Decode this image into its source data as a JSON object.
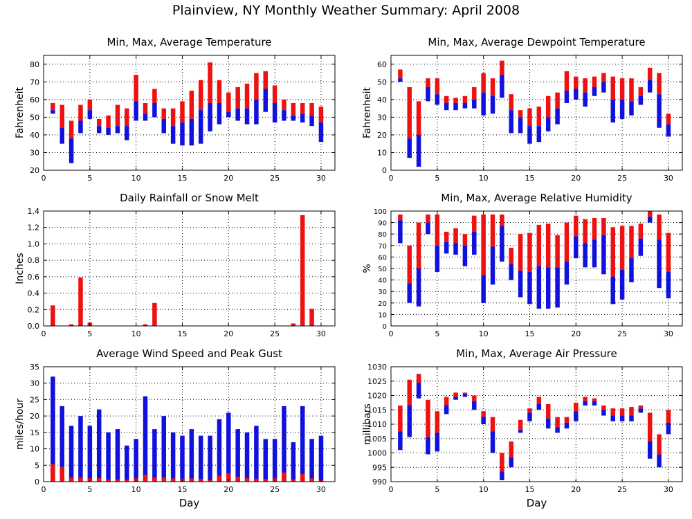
{
  "page": {
    "title": "Plainview, NY Monthly Weather Summary: April 2008"
  },
  "colors": {
    "max_part": "#ee1111",
    "min_part": "#1111dd",
    "grid": "#000000"
  },
  "chart_data": [
    {
      "id": "temperature",
      "type": "floating-bar",
      "title": "Min, Max, Average Temperature",
      "xlabel": "",
      "ylabel": "Fahrenheit",
      "xlim": [
        0,
        31.5
      ],
      "ylim": [
        20,
        85
      ],
      "xticks": [
        0,
        5,
        10,
        15,
        20,
        25,
        30
      ],
      "yticks": [
        20,
        30,
        40,
        50,
        60,
        70,
        80
      ],
      "grid": true,
      "x": [
        1,
        2,
        3,
        4,
        5,
        6,
        7,
        8,
        9,
        10,
        11,
        12,
        13,
        14,
        15,
        16,
        17,
        18,
        19,
        20,
        21,
        22,
        23,
        24,
        25,
        26,
        27,
        28,
        29,
        30
      ],
      "max": [
        58,
        57,
        48,
        57,
        60,
        49,
        51,
        57,
        55,
        74,
        58,
        66,
        55,
        55,
        59,
        65,
        71,
        81,
        71,
        64,
        67,
        69,
        75,
        76,
        68,
        60,
        58,
        58,
        58,
        56
      ],
      "avg": [
        54,
        44,
        38,
        48,
        54,
        45,
        44,
        45,
        45,
        59,
        52,
        58,
        49,
        45,
        47,
        49,
        54,
        58,
        58,
        53,
        55,
        55,
        60,
        66,
        58,
        54,
        51,
        52,
        51,
        47
      ],
      "min": [
        52,
        35,
        24,
        41,
        49,
        41,
        40,
        41,
        37,
        48,
        48,
        50,
        41,
        35,
        34,
        34,
        35,
        42,
        46,
        50,
        48,
        46,
        46,
        53,
        47,
        48,
        48,
        47,
        45,
        36
      ]
    },
    {
      "id": "dewpoint",
      "type": "floating-bar",
      "title": "Min, Max, Average Dewpoint Temperature",
      "xlabel": "",
      "ylabel": "Fahrenheit",
      "xlim": [
        0,
        31.5
      ],
      "ylim": [
        0,
        65
      ],
      "xticks": [
        0,
        5,
        10,
        15,
        20,
        25,
        30
      ],
      "yticks": [
        0,
        10,
        20,
        30,
        40,
        50,
        60
      ],
      "grid": true,
      "x": [
        1,
        2,
        3,
        4,
        5,
        6,
        7,
        8,
        9,
        10,
        11,
        12,
        13,
        14,
        15,
        16,
        17,
        18,
        19,
        20,
        21,
        22,
        23,
        24,
        25,
        26,
        27,
        28,
        29,
        30
      ],
      "max": [
        57,
        47,
        39,
        52,
        52,
        42,
        41,
        42,
        47,
        55,
        52,
        62,
        43,
        34,
        35,
        36,
        42,
        44,
        56,
        53,
        52,
        53,
        55,
        53,
        52,
        52,
        47,
        58,
        55,
        32
      ],
      "avg": [
        52,
        18,
        20,
        47,
        43,
        38,
        38,
        38,
        40,
        44,
        42,
        54,
        34,
        30,
        25,
        25,
        30,
        35,
        45,
        46,
        44,
        47,
        50,
        40,
        40,
        39,
        42,
        51,
        43,
        26
      ],
      "min": [
        50,
        7,
        2,
        39,
        37,
        34,
        34,
        35,
        35,
        31,
        32,
        41,
        21,
        21,
        15,
        16,
        22,
        26,
        38,
        40,
        36,
        42,
        44,
        27,
        29,
        31,
        37,
        44,
        24,
        19
      ]
    },
    {
      "id": "rainfall",
      "type": "bar",
      "title": "Daily Rainfall or Snow Melt",
      "xlabel": "",
      "ylabel": "Inches",
      "xlim": [
        0,
        31.5
      ],
      "ylim": [
        0,
        1.4
      ],
      "xticks": [
        0,
        5,
        10,
        15,
        20,
        25,
        30
      ],
      "yticks": [
        0.0,
        0.2,
        0.4,
        0.6,
        0.8,
        1.0,
        1.2,
        1.4
      ],
      "ytick_labels": [
        "0.0",
        "0.2",
        "0.4",
        "0.6",
        "0.8",
        "1.0",
        "1.2",
        "1.4"
      ],
      "grid": true,
      "x": [
        1,
        2,
        3,
        4,
        5,
        6,
        7,
        8,
        9,
        10,
        11,
        12,
        13,
        14,
        15,
        16,
        17,
        18,
        19,
        20,
        21,
        22,
        23,
        24,
        25,
        26,
        27,
        28,
        29,
        30
      ],
      "values": [
        0.25,
        0,
        0.02,
        0.59,
        0.04,
        0,
        0,
        0,
        0,
        0,
        0.02,
        0.28,
        0,
        0,
        0,
        0,
        0,
        0,
        0,
        0,
        0,
        0,
        0,
        0,
        0,
        0,
        0.03,
        1.35,
        0.21,
        0
      ]
    },
    {
      "id": "humidity",
      "type": "floating-bar",
      "title": "Min, Max, Average Relative Humidity",
      "xlabel": "",
      "ylabel": "%",
      "xlim": [
        0,
        31.5
      ],
      "ylim": [
        0,
        100
      ],
      "xticks": [
        0,
        5,
        10,
        15,
        20,
        25,
        30
      ],
      "yticks": [
        0,
        10,
        20,
        30,
        40,
        50,
        60,
        70,
        80,
        90,
        100
      ],
      "grid": true,
      "x": [
        1,
        2,
        3,
        4,
        5,
        6,
        7,
        8,
        9,
        10,
        11,
        12,
        13,
        14,
        15,
        16,
        17,
        18,
        19,
        20,
        21,
        22,
        23,
        24,
        25,
        26,
        27,
        28,
        29,
        30
      ],
      "max": [
        97,
        70,
        90,
        97,
        97,
        82,
        85,
        80,
        96,
        97,
        97,
        97,
        68,
        80,
        81,
        88,
        89,
        79,
        90,
        96,
        93,
        94,
        94,
        86,
        87,
        87,
        89,
        100,
        97,
        81
      ],
      "avg": [
        92,
        37,
        50,
        90,
        70,
        73,
        72,
        70,
        82,
        44,
        69,
        87,
        54,
        48,
        47,
        52,
        51,
        51,
        56,
        78,
        72,
        75,
        79,
        43,
        49,
        59,
        76,
        95,
        75,
        47
      ],
      "min": [
        72,
        20,
        17,
        80,
        47,
        63,
        62,
        52,
        62,
        20,
        36,
        56,
        40,
        25,
        19,
        15,
        15,
        16,
        36,
        59,
        51,
        51,
        45,
        19,
        23,
        38,
        61,
        90,
        33,
        24
      ]
    },
    {
      "id": "wind",
      "type": "stacked-bar",
      "title": "Average Wind Speed and Peak Gust",
      "xlabel": "Day",
      "ylabel": "miles/hour",
      "xlim": [
        0,
        31.5
      ],
      "ylim": [
        0,
        35
      ],
      "xticks": [
        0,
        5,
        10,
        15,
        20,
        25,
        30
      ],
      "yticks": [
        0,
        5,
        10,
        15,
        20,
        25,
        30,
        35
      ],
      "grid": true,
      "legend": "none",
      "x": [
        1,
        2,
        3,
        4,
        5,
        6,
        7,
        8,
        9,
        10,
        11,
        12,
        13,
        14,
        15,
        16,
        17,
        18,
        19,
        20,
        21,
        22,
        23,
        24,
        25,
        26,
        27,
        28,
        29,
        30
      ],
      "series": [
        {
          "values": [
            5.3,
            4.5,
            1.3,
            1.2,
            1.0,
            1.1,
            0.6,
            0.7,
            0.6,
            1.0,
            2.1,
            1.3,
            1.3,
            1.0,
            0.9,
            1.0,
            0.8,
            0.5,
            1.8,
            2.6,
            1.5,
            1.1,
            0.9,
            0.8,
            1.0,
            2.8,
            0.7,
            2.3,
            1.0,
            0.5
          ]
        },
        {
          "values": [
            32,
            23,
            17,
            20,
            17,
            22,
            15,
            16,
            11,
            13,
            26,
            16,
            20,
            15,
            14,
            16,
            14,
            14,
            19,
            21,
            16,
            15,
            17,
            13,
            13,
            23,
            12,
            23,
            13,
            14
          ]
        }
      ]
    },
    {
      "id": "pressure",
      "type": "floating-bar",
      "title": "Min, Max, Average Air Pressure",
      "xlabel": "Day",
      "ylabel": "millibars",
      "xlim": [
        0,
        31.5
      ],
      "ylim": [
        990,
        1030
      ],
      "xticks": [
        0,
        5,
        10,
        15,
        20,
        25,
        30
      ],
      "yticks": [
        990,
        995,
        1000,
        1005,
        1010,
        1015,
        1020,
        1025,
        1030
      ],
      "grid": true,
      "x": [
        1,
        2,
        3,
        4,
        5,
        6,
        7,
        8,
        9,
        10,
        11,
        12,
        13,
        14,
        15,
        16,
        17,
        18,
        19,
        20,
        21,
        22,
        23,
        24,
        25,
        26,
        27,
        28,
        29,
        30
      ],
      "max": [
        1016.5,
        1025.5,
        1027.5,
        1018.5,
        1014.5,
        1019.5,
        1021,
        1021,
        1020,
        1014.5,
        1012.5,
        1000,
        1004,
        1011.5,
        1015.5,
        1019.5,
        1017,
        1012.5,
        1012.5,
        1017.5,
        1019.5,
        1019,
        1016.5,
        1015.5,
        1015.5,
        1016,
        1016.5,
        1014,
        1006.5,
        1015
      ],
      "avg": [
        1007.5,
        1016.5,
        1024.5,
        1005.5,
        1007,
        1016.5,
        1019.5,
        1020.5,
        1018,
        1012.5,
        1007.5,
        993.5,
        998.5,
        1008,
        1014,
        1017,
        1012,
        1009,
        1010.5,
        1014.5,
        1018,
        1018,
        1015,
        1013,
        1013,
        1013,
        1015.5,
        1004,
        999.5,
        1010.5
      ],
      "min": [
        1001,
        1005.5,
        1019,
        999.5,
        1000.5,
        1013.5,
        1018.5,
        1019.5,
        1015,
        1010,
        1000,
        990.5,
        995,
        1007,
        1011,
        1015,
        1008.5,
        1007,
        1008.5,
        1011,
        1016.5,
        1016.5,
        1013,
        1011,
        1011,
        1011,
        1014,
        998,
        995,
        1006.5
      ]
    }
  ]
}
